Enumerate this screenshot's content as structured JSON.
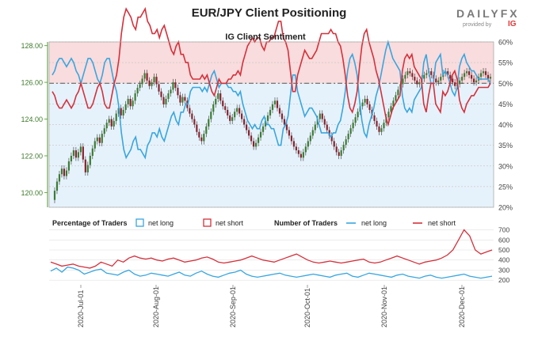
{
  "header": {
    "title": "EUR/JPY Client Positioning",
    "brand": "DAILYFX",
    "brand_sub": "provided by",
    "brand_ig": "IG"
  },
  "chart_data": [
    {
      "type": "line",
      "title": "IG Client Sentiment",
      "y_left_ticks": [
        "128.00",
        "126.00",
        "124.00",
        "122.00",
        "120.00"
      ],
      "y_left_range": [
        119.2,
        128.2
      ],
      "y_right_ticks": [
        "60%",
        "55%",
        "50%",
        "45%",
        "40%",
        "35%",
        "30%",
        "25%",
        "20%"
      ],
      "y_right_range": [
        20,
        60
      ],
      "net_long_percent": [
        52,
        53,
        55,
        56,
        56,
        55,
        54,
        55,
        56,
        55,
        53,
        52,
        50,
        52,
        54,
        56,
        56,
        55,
        53,
        51,
        50,
        52,
        55,
        56,
        56,
        53,
        50,
        48,
        44,
        38,
        34,
        32,
        33,
        34,
        36,
        37,
        34,
        34,
        33,
        32,
        35,
        36,
        38,
        38,
        37,
        39,
        37,
        36,
        38,
        40,
        42,
        43,
        41,
        40,
        43,
        43,
        45,
        45,
        48,
        49,
        49,
        49,
        49,
        48,
        49,
        48,
        50,
        52,
        53,
        51,
        49,
        50,
        50,
        50,
        49,
        49,
        48,
        48,
        47,
        48,
        45,
        43,
        41,
        40,
        39,
        40,
        39,
        39,
        41,
        42,
        40,
        40,
        39,
        39,
        37,
        35,
        35,
        39,
        40,
        42,
        47,
        52,
        52,
        48,
        46,
        44,
        42,
        43,
        44,
        44,
        43,
        42,
        40,
        38,
        38,
        38,
        38,
        37,
        38,
        38,
        40,
        41,
        44,
        48,
        53,
        56,
        57,
        55,
        52,
        46,
        41,
        38,
        37,
        40,
        42,
        44,
        47,
        49,
        52,
        55,
        58,
        60,
        58,
        56,
        55,
        54,
        53,
        47,
        44,
        43,
        44,
        43,
        46,
        47,
        48,
        49,
        55,
        57,
        53,
        50,
        50,
        55,
        56,
        57,
        52,
        53,
        52,
        50,
        48,
        47,
        49,
        54,
        56,
        57,
        55,
        54,
        53,
        53,
        52,
        51,
        51,
        51,
        51,
        51,
        50
      ],
      "price": [
        119.6,
        120.1,
        120.6,
        121.0,
        121.3,
        120.9,
        121.2,
        121.7,
        122.0,
        122.3,
        121.9,
        122.2,
        122.5,
        121.8,
        121.1,
        121.5,
        122.0,
        122.4,
        122.8,
        123.0,
        122.7,
        123.2,
        123.5,
        123.8,
        124.0,
        123.6,
        123.9,
        124.3,
        124.6,
        124.2,
        124.5,
        124.8,
        125.1,
        124.7,
        125.0,
        125.4,
        125.7,
        125.9,
        126.2,
        126.5,
        126.1,
        125.8,
        126.0,
        126.3,
        125.9,
        125.5,
        125.2,
        124.8,
        125.1,
        125.4,
        125.6,
        126.0,
        125.7,
        125.3,
        124.9,
        125.2,
        125.0,
        124.6,
        124.3,
        124.0,
        123.7,
        123.3,
        123.0,
        122.8,
        123.2,
        123.6,
        124.0,
        124.4,
        124.8,
        125.1,
        125.4,
        125.0,
        124.7,
        124.5,
        124.2,
        123.9,
        124.1,
        124.4,
        124.6,
        124.3,
        124.0,
        123.7,
        123.4,
        123.1,
        122.8,
        122.5,
        122.7,
        123.0,
        123.3,
        123.6,
        123.9,
        124.2,
        124.5,
        124.8,
        125.0,
        124.6,
        124.3,
        124.0,
        123.7,
        123.4,
        123.1,
        122.8,
        122.5,
        122.3,
        122.1,
        121.9,
        122.2,
        122.5,
        122.8,
        123.1,
        123.4,
        123.7,
        124.0,
        124.3,
        124.0,
        123.7,
        123.4,
        123.1,
        122.8,
        122.5,
        122.2,
        122.0,
        122.3,
        122.6,
        122.9,
        123.2,
        123.5,
        123.8,
        124.1,
        124.4,
        124.7,
        124.9,
        125.1,
        124.8,
        124.5,
        124.2,
        123.9,
        123.6,
        123.3,
        123.5,
        123.8,
        124.1,
        124.4,
        124.7,
        125.0,
        125.3,
        125.6,
        125.9,
        126.2,
        126.4,
        126.6,
        126.5,
        126.3,
        126.1,
        125.9,
        126.0,
        126.2,
        126.4,
        126.5,
        126.6,
        126.4,
        126.2,
        126.0,
        126.1,
        126.3,
        126.5,
        126.6,
        126.4,
        126.2,
        126.0,
        125.8,
        125.9,
        126.1,
        126.3,
        126.5,
        126.6,
        126.4,
        126.2,
        126.0,
        126.1,
        126.3,
        126.5,
        126.6,
        126.4,
        126.2,
        126.3
      ],
      "x_tick_labels": [
        "2020-Jul-01",
        "2020-Aug-01",
        "2020-Sep-01",
        "2020-Oct-01",
        "2020-Nov-01",
        "2020-Dec-01"
      ],
      "colors": {
        "net_long": "#38a6e0",
        "net_short": "#d5303b",
        "price_up": "#3a7d32",
        "price_down": "#8b2230",
        "bg_long": "#e6f2fb",
        "bg_short": "#f9dcdd"
      }
    },
    {
      "type": "line",
      "legend_percentage_label": "Percentage of Traders",
      "legend_number_label": "Number of Traders",
      "legend_net_long": "net long",
      "legend_net_short": "net short",
      "y_right_ticks": [
        "700",
        "600",
        "500",
        "400",
        "300",
        "200"
      ],
      "y_right_range": [
        170,
        720
      ],
      "series": [
        {
          "name": "net long",
          "values": [
            290,
            320,
            280,
            330,
            320,
            300,
            260,
            280,
            300,
            310,
            270,
            260,
            250,
            280,
            300,
            260,
            240,
            250,
            270,
            260,
            250,
            240,
            260,
            280,
            250,
            240,
            270,
            290,
            260,
            240,
            230,
            250,
            270,
            280,
            300,
            260,
            240,
            230,
            240,
            250,
            260,
            270,
            250,
            240,
            230,
            240,
            250,
            260,
            250,
            240,
            230,
            250,
            260,
            270,
            240,
            230,
            250,
            270,
            260,
            250,
            240,
            230,
            250,
            260,
            240,
            230,
            220,
            240,
            250,
            230,
            220,
            230,
            240,
            250,
            260,
            240,
            230,
            220,
            230,
            240
          ]
        },
        {
          "name": "net short",
          "values": [
            380,
            360,
            340,
            350,
            360,
            340,
            330,
            320,
            340,
            380,
            360,
            340,
            400,
            380,
            420,
            440,
            420,
            410,
            420,
            400,
            390,
            410,
            420,
            400,
            380,
            390,
            400,
            420,
            430,
            410,
            380,
            370,
            380,
            390,
            400,
            420,
            440,
            420,
            400,
            390,
            380,
            400,
            420,
            440,
            460,
            430,
            400,
            380,
            370,
            380,
            390,
            380,
            370,
            380,
            390,
            400,
            410,
            380,
            370,
            380,
            400,
            420,
            440,
            420,
            400,
            380,
            360,
            380,
            390,
            400,
            420,
            450,
            500,
            600,
            700,
            640,
            500,
            460,
            480,
            500
          ]
        }
      ]
    }
  ]
}
